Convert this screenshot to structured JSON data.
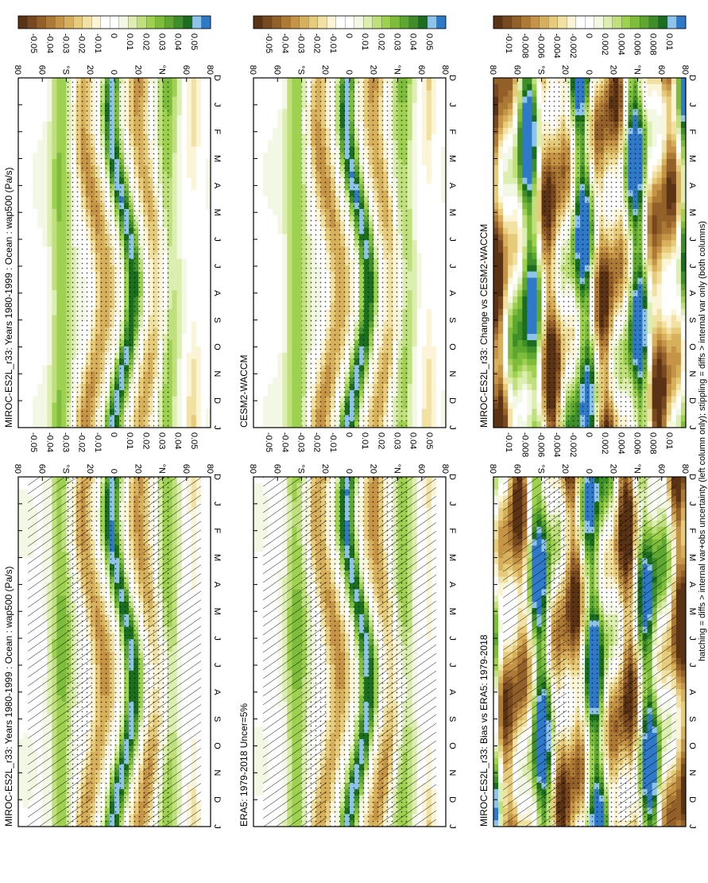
{
  "chart_data": {
    "type": "heatmap",
    "orientation": "rotated 90 degrees clockwise",
    "variable": "wap500 (Pa/s)",
    "months": [
      "D",
      "J",
      "F",
      "M",
      "A",
      "M",
      "J",
      "J",
      "A",
      "S",
      "O",
      "N",
      "D",
      "J"
    ],
    "lat_ticks": [
      "80",
      "60",
      "°N",
      "20",
      "0",
      "20",
      "°S",
      "60",
      "80"
    ],
    "footnote": "hatching = diffs > internal var+obs uncertainty (left column only); stippling = diffs > internal var only (both columns)",
    "mean_scale": {
      "labels": [
        "0.05",
        "0.04",
        "0.03",
        "0.02",
        "0.01",
        "0",
        "-0.01",
        "-0.02",
        "-0.03",
        "-0.04",
        "-0.05"
      ],
      "colors": [
        "#2f79c9",
        "#8ec3ea",
        "#1b6e20",
        "#3e8e29",
        "#5ea731",
        "#7ebd3c",
        "#9fd150",
        "#bfe07c",
        "#dcefb0",
        "#f2f8e4",
        "#ffffff",
        "#ffffff",
        "#fbf4d6",
        "#f1e2a3",
        "#e6cb7a",
        "#d7b05b",
        "#c59446",
        "#ad7a35",
        "#936029",
        "#78491f",
        "#5a3314"
      ]
    },
    "diff_scale": {
      "labels": [
        "0.01",
        "0.008",
        "0.006",
        "0.004",
        "0.002",
        "0",
        "-0.002",
        "-0.004",
        "-0.006",
        "-0.008",
        "-0.01"
      ],
      "colors": [
        "#2f79c9",
        "#8ec3ea",
        "#1b6e20",
        "#3e8e29",
        "#5ea731",
        "#7ebd3c",
        "#9fd150",
        "#bfe07c",
        "#dcefb0",
        "#f2f8e4",
        "#ffffff",
        "#ffffff",
        "#fbf4d6",
        "#f1e2a3",
        "#e6cb7a",
        "#d7b05b",
        "#c59446",
        "#ad7a35",
        "#936029",
        "#78491f",
        "#5a3314"
      ]
    },
    "panels": [
      {
        "id": "p1",
        "title": "MIROC-ES2L_r33: Years 1980-1999 : Ocean : wap500 (Pa/s)",
        "kind": "mean",
        "hatching": true,
        "stippling": true,
        "scale": "mean"
      },
      {
        "id": "p2",
        "title": "MIROC-ES2L_r33: Years 1980-1999 : Ocean : wap500 (Pa/s)",
        "kind": "mean",
        "hatching": false,
        "stippling": true,
        "scale": "mean"
      },
      {
        "id": "p3",
        "title": "ERA5: 1979-2018 Uncer=5%",
        "kind": "mean",
        "hatching": true,
        "stippling": true,
        "scale": "mean"
      },
      {
        "id": "p4",
        "title": "CESM2-WACCM",
        "kind": "mean",
        "hatching": false,
        "stippling": true,
        "scale": "mean"
      },
      {
        "id": "p5",
        "title": "MIROC-ES2L_r33: Bias vs ERA5: 1979-2018",
        "kind": "diff",
        "hatching": true,
        "stippling": true,
        "scale": "diff"
      },
      {
        "id": "p6",
        "title": "MIROC-ES2L_r33: Change vs CESM2-WACCM",
        "kind": "diff",
        "hatching": false,
        "stippling": true,
        "scale": "diff"
      }
    ]
  }
}
